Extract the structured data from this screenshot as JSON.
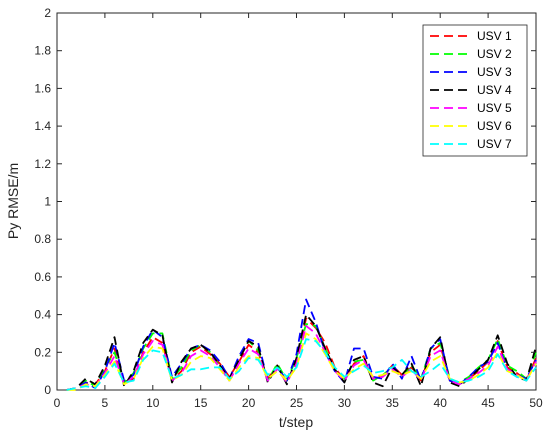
{
  "chart_data": {
    "type": "line",
    "title": "",
    "xlabel": "t/step",
    "ylabel": "Py RMSE/m",
    "xlim": [
      0,
      50
    ],
    "ylim": [
      0,
      2
    ],
    "xticks": [
      0,
      5,
      10,
      15,
      20,
      25,
      30,
      35,
      40,
      45,
      50
    ],
    "yticks": [
      0,
      0.2,
      0.4,
      0.6,
      0.8,
      1,
      1.2,
      1.4,
      1.6,
      1.8,
      2
    ],
    "xtick_labels": [
      "0",
      "5",
      "10",
      "15",
      "20",
      "25",
      "30",
      "35",
      "40",
      "45",
      "50"
    ],
    "ytick_labels": [
      "0",
      "0.2",
      "0.4",
      "0.6",
      "0.8",
      "1",
      "1.2",
      "1.4",
      "1.6",
      "1.8",
      "2"
    ],
    "grid": false,
    "legend_position": "top-right",
    "line_style": "dashed",
    "x": [
      1,
      2,
      3,
      4,
      5,
      6,
      7,
      8,
      9,
      10,
      11,
      12,
      13,
      14,
      15,
      16,
      17,
      18,
      19,
      20,
      21,
      22,
      23,
      24,
      25,
      26,
      27,
      28,
      29,
      30,
      31,
      32,
      33,
      34,
      35,
      36,
      37,
      38,
      39,
      40,
      41,
      42,
      43,
      44,
      45,
      46,
      47,
      48,
      49,
      50
    ],
    "series": [
      {
        "name": "USV 1",
        "color": "#ff0000",
        "values": [
          0,
          0.01,
          0.04,
          0.03,
          0.1,
          0.22,
          0.03,
          0.06,
          0.2,
          0.28,
          0.25,
          0.05,
          0.1,
          0.2,
          0.23,
          0.19,
          0.14,
          0.07,
          0.15,
          0.24,
          0.2,
          0.06,
          0.13,
          0.04,
          0.15,
          0.38,
          0.33,
          0.25,
          0.12,
          0.05,
          0.14,
          0.18,
          0.06,
          0.07,
          0.13,
          0.08,
          0.12,
          0.05,
          0.2,
          0.24,
          0.05,
          0.03,
          0.06,
          0.1,
          0.15,
          0.26,
          0.12,
          0.09,
          0.05,
          0.17
        ]
      },
      {
        "name": "USV 2",
        "color": "#00ff00",
        "values": [
          0,
          0.01,
          0.05,
          0.02,
          0.12,
          0.2,
          0.04,
          0.09,
          0.22,
          0.3,
          0.3,
          0.06,
          0.12,
          0.21,
          0.24,
          0.2,
          0.12,
          0.05,
          0.17,
          0.26,
          0.21,
          0.05,
          0.14,
          0.05,
          0.17,
          0.35,
          0.34,
          0.22,
          0.1,
          0.06,
          0.15,
          0.16,
          0.05,
          0.08,
          0.12,
          0.07,
          0.13,
          0.06,
          0.22,
          0.25,
          0.06,
          0.04,
          0.07,
          0.12,
          0.16,
          0.27,
          0.13,
          0.1,
          0.06,
          0.2
        ]
      },
      {
        "name": "USV 3",
        "color": "#0000ff",
        "values": [
          0,
          0.01,
          0.04,
          0.01,
          0.1,
          0.25,
          0.05,
          0.08,
          0.23,
          0.32,
          0.28,
          0.07,
          0.14,
          0.22,
          0.24,
          0.21,
          0.15,
          0.06,
          0.18,
          0.27,
          0.25,
          0.05,
          0.12,
          0.05,
          0.19,
          0.48,
          0.36,
          0.2,
          0.1,
          0.04,
          0.22,
          0.22,
          0.07,
          0.06,
          0.14,
          0.06,
          0.18,
          0.05,
          0.22,
          0.27,
          0.05,
          0.03,
          0.07,
          0.12,
          0.15,
          0.25,
          0.11,
          0.08,
          0.06,
          0.16
        ]
      },
      {
        "name": "USV 4",
        "color": "#000000",
        "values": [
          0,
          0.01,
          0.06,
          0.03,
          0.13,
          0.28,
          0.02,
          0.1,
          0.25,
          0.32,
          0.29,
          0.04,
          0.15,
          0.22,
          0.24,
          0.2,
          0.13,
          0.06,
          0.16,
          0.26,
          0.23,
          0.04,
          0.13,
          0.03,
          0.17,
          0.4,
          0.34,
          0.22,
          0.11,
          0.04,
          0.16,
          0.18,
          0.04,
          0.02,
          0.12,
          0.08,
          0.14,
          0.02,
          0.22,
          0.28,
          0.04,
          0.02,
          0.06,
          0.11,
          0.16,
          0.29,
          0.14,
          0.07,
          0.05,
          0.23
        ]
      },
      {
        "name": "USV 5",
        "color": "#ff00ff",
        "values": [
          0,
          0.01,
          0.03,
          0.02,
          0.09,
          0.18,
          0.03,
          0.07,
          0.19,
          0.26,
          0.24,
          0.05,
          0.09,
          0.18,
          0.21,
          0.18,
          0.12,
          0.05,
          0.14,
          0.22,
          0.19,
          0.05,
          0.11,
          0.04,
          0.14,
          0.34,
          0.3,
          0.2,
          0.1,
          0.05,
          0.13,
          0.16,
          0.06,
          0.07,
          0.11,
          0.07,
          0.11,
          0.05,
          0.18,
          0.21,
          0.05,
          0.03,
          0.06,
          0.09,
          0.13,
          0.23,
          0.11,
          0.08,
          0.05,
          0.15
        ]
      },
      {
        "name": "USV 6",
        "color": "#ffff00",
        "values": [
          0,
          0.0,
          0.03,
          0.02,
          0.08,
          0.15,
          0.03,
          0.06,
          0.17,
          0.23,
          0.22,
          0.05,
          0.08,
          0.15,
          0.18,
          0.17,
          0.11,
          0.05,
          0.12,
          0.18,
          0.17,
          0.06,
          0.1,
          0.05,
          0.12,
          0.3,
          0.27,
          0.19,
          0.1,
          0.06,
          0.11,
          0.14,
          0.07,
          0.08,
          0.1,
          0.08,
          0.1,
          0.06,
          0.15,
          0.18,
          0.06,
          0.04,
          0.05,
          0.08,
          0.12,
          0.2,
          0.1,
          0.08,
          0.05,
          0.14
        ]
      },
      {
        "name": "USV 7",
        "color": "#00ffff",
        "values": [
          0,
          0.01,
          0.02,
          0.01,
          0.07,
          0.14,
          0.04,
          0.05,
          0.16,
          0.21,
          0.2,
          0.06,
          0.08,
          0.11,
          0.11,
          0.12,
          0.12,
          0.06,
          0.1,
          0.17,
          0.16,
          0.08,
          0.12,
          0.07,
          0.12,
          0.27,
          0.26,
          0.2,
          0.12,
          0.07,
          0.1,
          0.13,
          0.09,
          0.1,
          0.12,
          0.16,
          0.1,
          0.07,
          0.1,
          0.14,
          0.06,
          0.04,
          0.05,
          0.07,
          0.1,
          0.19,
          0.1,
          0.07,
          0.05,
          0.12
        ]
      }
    ]
  }
}
